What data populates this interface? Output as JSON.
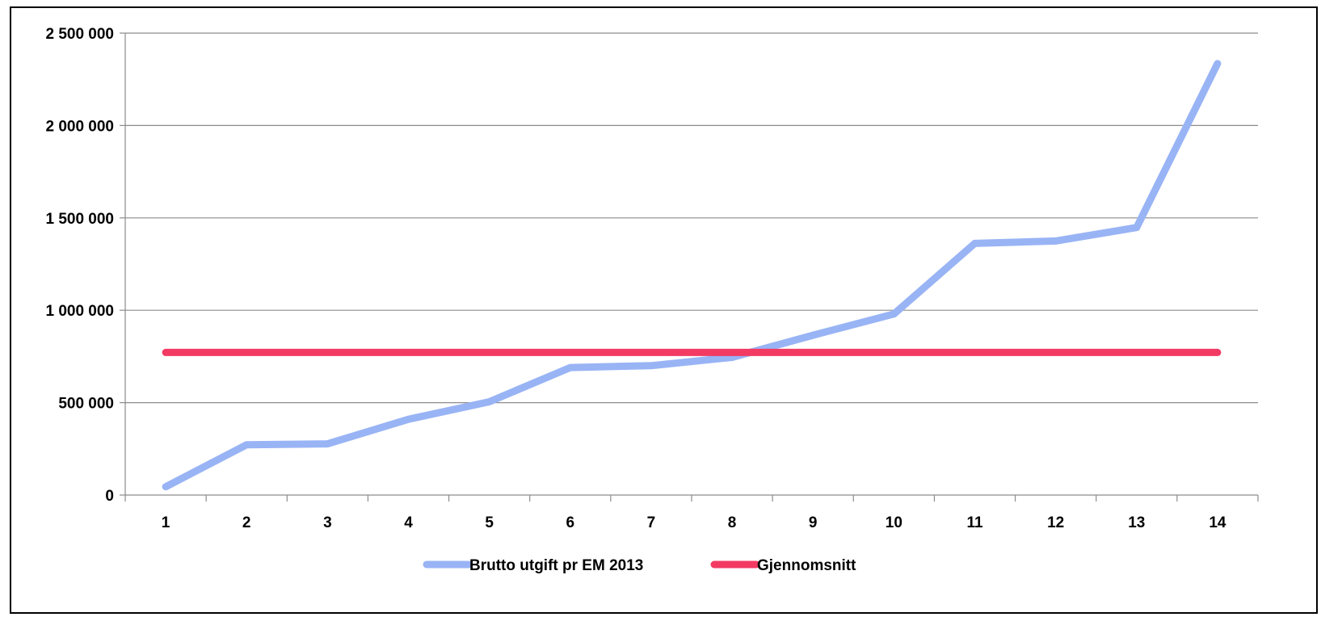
{
  "chart_data": {
    "type": "line",
    "title": "",
    "xlabel": "",
    "ylabel": "",
    "categories": [
      "1",
      "2",
      "3",
      "4",
      "5",
      "6",
      "7",
      "8",
      "9",
      "10",
      "11",
      "12",
      "13",
      "14"
    ],
    "ylim": [
      0,
      2500000
    ],
    "ytick_values": [
      0,
      500000,
      1000000,
      1500000,
      2000000,
      2500000
    ],
    "ytick_labels": [
      "0",
      "500 000",
      "1 000 000",
      "1 500 000",
      "2 000 000",
      "2 500 000"
    ],
    "grid": true,
    "legend_position": "bottom",
    "series": [
      {
        "name": "Brutto utgift pr EM 2013",
        "color": "#99b4f5",
        "values": [
          45000,
          272000,
          277000,
          410000,
          505000,
          690000,
          700000,
          745000,
          865000,
          980000,
          1362000,
          1375000,
          1448000,
          2335000
        ]
      },
      {
        "name": "Gjennomsnitt",
        "color": "#f23a63",
        "values": [
          772000,
          772000,
          772000,
          772000,
          772000,
          772000,
          772000,
          772000,
          772000,
          772000,
          772000,
          772000,
          772000,
          772000
        ]
      }
    ]
  }
}
